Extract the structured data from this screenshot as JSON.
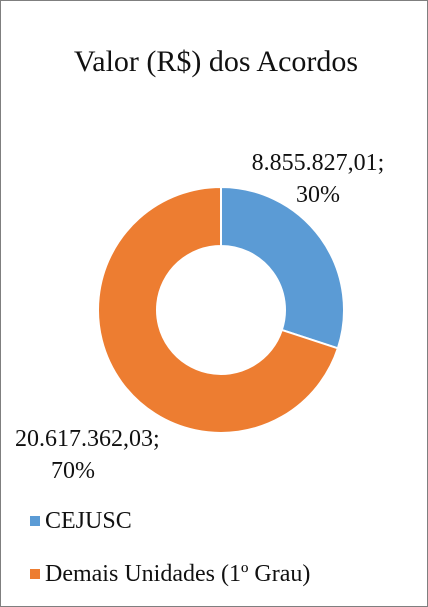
{
  "chart_data": {
    "type": "donut",
    "title": "Valor (R$) dos Acordos",
    "categories": [
      "CEJUSC",
      "Demais Unidades (1º Grau)"
    ],
    "values": [
      8855827.01,
      20617362.03
    ],
    "value_labels": [
      "8.855.827,01;",
      "20.617.362,03;"
    ],
    "percents": [
      30,
      70
    ],
    "percent_labels": [
      "30%",
      "70%"
    ],
    "colors": [
      "#5b9bd5",
      "#ed7d31"
    ]
  }
}
